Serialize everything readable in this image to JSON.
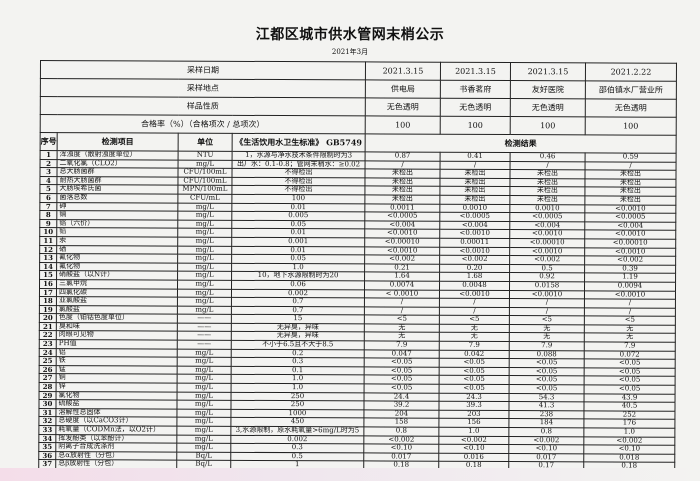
{
  "title": "江都区城市供水管网末梢公示",
  "month": "2021年3月",
  "header": {
    "date_label": "采样日期",
    "dates": [
      "2021.3.15",
      "2021.3.15",
      "2021.3.15",
      "2021.2.22"
    ],
    "site_label": "采样地点",
    "sites": [
      "供电局",
      "书香茗府",
      "友好医院",
      "邵伯镇水厂营业所"
    ],
    "nature_label": "样品性质",
    "natures": [
      "无色透明",
      "无色透明",
      "无色透明",
      "无色透明"
    ],
    "pass_label": "合格率（%）（合格项次 / 总项次）",
    "pass_rates": [
      "100",
      "100",
      "100",
      "100"
    ],
    "col_seq": "序号",
    "col_item": "检测项目",
    "col_unit": "单位",
    "col_std": "《生活饮用水卫生标准》 GB5749",
    "col_results": "检测结果"
  },
  "rows": [
    {
      "n": "1",
      "item": "浑浊度（散射浊度单位）",
      "unit": "NTU",
      "std": "1，水源与净水技术条件限制时为3",
      "r": [
        "0.87",
        "0.41",
        "0.46",
        "0.59"
      ]
    },
    {
      "n": "2",
      "item": "二氧化氯（CLO2）",
      "unit": "mg/L",
      "std": "出厂水：0.1-0.8；管网末梢水：≥0.02",
      "r": [
        "/",
        "/",
        "/",
        "/"
      ]
    },
    {
      "n": "3",
      "item": "总大肠菌群",
      "unit": "CFU/100mL",
      "std": "不得检出",
      "r": [
        "未检出",
        "未检出",
        "未检出",
        "未检出"
      ]
    },
    {
      "n": "4",
      "item": "耐热大肠菌群",
      "unit": "CFU/100mL",
      "std": "不得检出",
      "r": [
        "未检出",
        "未检出",
        "未检出",
        "未检出"
      ]
    },
    {
      "n": "5",
      "item": "大肠埃希氏菌",
      "unit": "MPN/100mL",
      "std": "不得检出",
      "r": [
        "未检出",
        "未检出",
        "未检出",
        "未检出"
      ]
    },
    {
      "n": "6",
      "item": "菌落总数",
      "unit": "CFU/mL",
      "std": "100",
      "r": [
        "未检出",
        "未检出",
        "未检出",
        "未检出"
      ]
    },
    {
      "n": "7",
      "item": "砷",
      "unit": "mg/L",
      "std": "0.01",
      "r": [
        "0.0011",
        "0.0010",
        "0.0010",
        "<0.0010"
      ]
    },
    {
      "n": "8",
      "item": "镉",
      "unit": "mg/L",
      "std": "0.005",
      "r": [
        "<0.0005",
        "<0.0005",
        "<0.0005",
        "<0.0005"
      ]
    },
    {
      "n": "9",
      "item": "铬（六价）",
      "unit": "mg/L",
      "std": "0.05",
      "r": [
        "<0.004",
        "<0.004",
        "<0.004",
        "<0.004"
      ]
    },
    {
      "n": "10",
      "item": "铅",
      "unit": "mg/L",
      "std": "0.01",
      "r": [
        "<0.0010",
        "<0.0010",
        "<0.0010",
        "<0.0010"
      ]
    },
    {
      "n": "11",
      "item": "汞",
      "unit": "mg/L",
      "std": "0.001",
      "r": [
        "<0.00010",
        "0.00011",
        "<0.00010",
        "<0.00010"
      ]
    },
    {
      "n": "12",
      "item": "硒",
      "unit": "mg/L",
      "std": "0.01",
      "r": [
        "<0.0010",
        "<0.0010",
        "<0.0010",
        "<0.0010"
      ]
    },
    {
      "n": "13",
      "item": "氰化物",
      "unit": "mg/L",
      "std": "0.05",
      "r": [
        "<0.002",
        "<0.002",
        "<0.002",
        "<0.002"
      ]
    },
    {
      "n": "14",
      "item": "氟化物",
      "unit": "mg/L",
      "std": "1.0",
      "r": [
        "0.21",
        "0.20",
        "0.5",
        "0.39"
      ]
    },
    {
      "n": "15",
      "item": "硝酸盐（以N计）",
      "unit": "mg/L",
      "std": "10，地下水源限制时为20",
      "r": [
        "1.64",
        "1.68",
        "0.92",
        "1.19"
      ]
    },
    {
      "n": "16",
      "item": "三氯甲烷",
      "unit": "mg/L",
      "std": "0.06",
      "r": [
        "0.0074",
        "0.0048",
        "0.0158",
        "0.0094"
      ]
    },
    {
      "n": "17",
      "item": "四氯化碳",
      "unit": "mg/L",
      "std": "0.002",
      "r": [
        "< 0.0010",
        "<0.0010",
        "<0.0010",
        "<0.0010"
      ]
    },
    {
      "n": "18",
      "item": "亚氯酸盐",
      "unit": "mg/L",
      "std": "0.7",
      "r": [
        "/",
        "/",
        "/",
        "/"
      ]
    },
    {
      "n": "19",
      "item": "氯酸盐",
      "unit": "mg/L",
      "std": "0.7",
      "r": [
        "/",
        "/",
        "/",
        "/"
      ]
    },
    {
      "n": "20",
      "item": "色度（铂钴色度单位）",
      "unit": "——",
      "std": "15",
      "r": [
        "<5",
        "<5",
        "<5",
        "<5"
      ]
    },
    {
      "n": "21",
      "item": "臭和味",
      "unit": "——",
      "std": "无异臭，异味",
      "r": [
        "无",
        "无",
        "无",
        "无"
      ]
    },
    {
      "n": "22",
      "item": "肉眼可见物",
      "unit": "——",
      "std": "无异臭，异味",
      "r": [
        "无",
        "无",
        "无",
        "无"
      ]
    },
    {
      "n": "23",
      "item": "PH值",
      "unit": "——",
      "std": "不小于6.5且不大于8.5",
      "r": [
        "7.9",
        "7.9",
        "7.9",
        "7.9"
      ]
    },
    {
      "n": "24",
      "item": "铝",
      "unit": "mg/L",
      "std": "0.2",
      "r": [
        "0.047",
        "0.042",
        "0.088",
        "0.072"
      ]
    },
    {
      "n": "25",
      "item": "铁",
      "unit": "mg/L",
      "std": "0.3",
      "r": [
        "<0.05",
        "<0.05",
        "<0.05",
        "<0.05"
      ]
    },
    {
      "n": "26",
      "item": "锰",
      "unit": "mg/L",
      "std": "0.1",
      "r": [
        "<0.05",
        "<0.05",
        "<0.05",
        "<0.05"
      ]
    },
    {
      "n": "27",
      "item": "铜",
      "unit": "mg/L",
      "std": "1.0",
      "r": [
        "<0.05",
        "<0.05",
        "<0.05",
        "<0.05"
      ]
    },
    {
      "n": "28",
      "item": "锌",
      "unit": "mg/L",
      "std": "1.0",
      "r": [
        "<0.05",
        "<0.05",
        "<0.05",
        "<0.05"
      ]
    },
    {
      "n": "29",
      "item": "氯化物",
      "unit": "mg/L",
      "std": "250",
      "r": [
        "24.4",
        "24.3",
        "54.3",
        "43.9"
      ]
    },
    {
      "n": "30",
      "item": "硫酸盐",
      "unit": "mg/L",
      "std": "250",
      "r": [
        "39.2",
        "39.3",
        "41.3",
        "40.5"
      ]
    },
    {
      "n": "31",
      "item": "溶解性总固体",
      "unit": "mg/L",
      "std": "1000",
      "r": [
        "204",
        "203",
        "238",
        "252"
      ]
    },
    {
      "n": "32",
      "item": "总硬度（以CaCO3计）",
      "unit": "mg/L",
      "std": "450",
      "r": [
        "158",
        "156",
        "184",
        "176"
      ]
    },
    {
      "n": "33",
      "item": "耗氧量（CODMn法，以O2计）",
      "unit": "mg/L",
      "std": "3,水源限制，原水耗氧量>6mg/L时为5",
      "r": [
        "0.8",
        "1.0",
        "0.8",
        "1.0"
      ]
    },
    {
      "n": "34",
      "item": "挥发酚类（以苯酚计）",
      "unit": "mg/L",
      "std": "0.002",
      "r": [
        "<0.002",
        "<0.002",
        "<0.002",
        "<0.002"
      ]
    },
    {
      "n": "35",
      "item": "阴离子合成洗涤剂",
      "unit": "mg/L",
      "std": "0.3",
      "r": [
        "<0.10",
        "<0.10",
        "<0.10",
        "<0.10"
      ]
    },
    {
      "n": "36",
      "item": "总α放射性（分包）",
      "unit": "Bq/L",
      "std": "0.5",
      "r": [
        "0.017",
        "0.016",
        "0.017",
        "0.018"
      ]
    },
    {
      "n": "37",
      "item": "总β放射性（分包）",
      "unit": "Bq/L",
      "std": "1",
      "r": [
        "0.18",
        "0.18",
        "0.17",
        "0.18"
      ]
    }
  ]
}
